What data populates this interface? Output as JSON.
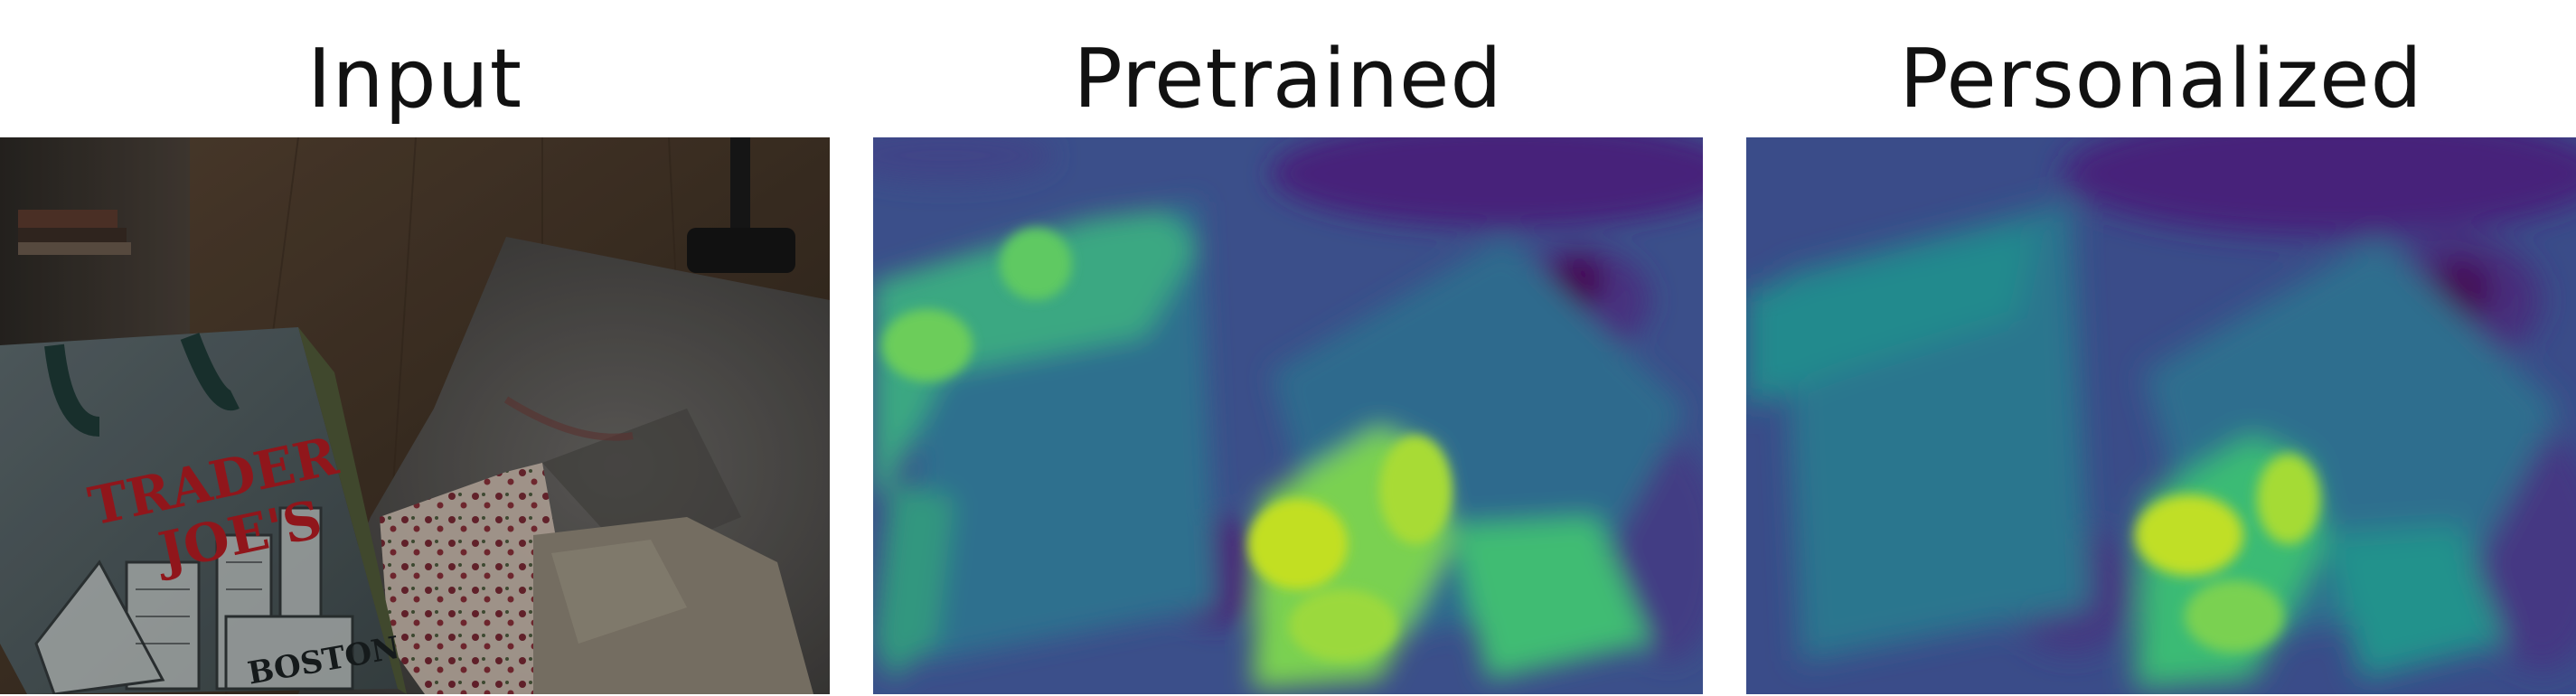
{
  "figure": {
    "panels": [
      {
        "title": "Input",
        "kind": "photo"
      },
      {
        "title": "Pretrained",
        "kind": "heatmap",
        "colormap": "viridis"
      },
      {
        "title": "Personalized",
        "kind": "heatmap",
        "colormap": "viridis"
      }
    ],
    "photo_logo_text": [
      "TRADER",
      "JOE'S"
    ],
    "photo_bag_bottom_text": "BOSTON",
    "colors": {
      "viridis_dark": "#440154",
      "viridis_blue": "#3b528b",
      "viridis_teal": "#21918c",
      "viridis_green": "#5ec962",
      "viridis_yellow": "#fde725",
      "logo_red": "#b01c22"
    }
  }
}
